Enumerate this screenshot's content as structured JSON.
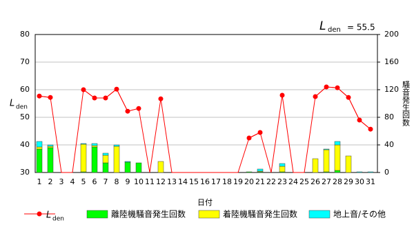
{
  "chart_data": {
    "type": "combo",
    "annotation": {
      "text": "L",
      "sub": "den",
      "value_text": "= 55.5"
    },
    "y_label": "L",
    "y_label_sub": "den",
    "y2_label": "騒音発生回数",
    "x_label": "日付",
    "categories": [
      "1",
      "2",
      "3",
      "4",
      "5",
      "6",
      "7",
      "8",
      "9",
      "10",
      "11",
      "12",
      "13",
      "14",
      "15",
      "16",
      "17",
      "18",
      "19",
      "20",
      "21",
      "22",
      "23",
      "24",
      "25",
      "26",
      "27",
      "28",
      "29",
      "30",
      "31"
    ],
    "ylim": [
      30,
      80
    ],
    "yticks": [
      30,
      40,
      50,
      60,
      70,
      80
    ],
    "y2lim": [
      0,
      200
    ],
    "y2ticks": [
      0,
      40,
      80,
      120,
      160,
      200
    ],
    "grid": true,
    "series": [
      {
        "name": "L",
        "name_sub": "den",
        "type": "line",
        "color": "#ff0000",
        "axis": "y",
        "values": [
          57.7,
          57.2,
          null,
          null,
          60,
          57,
          57,
          60.2,
          52.2,
          53.2,
          null,
          56.7,
          null,
          null,
          null,
          null,
          null,
          null,
          null,
          42.5,
          44.5,
          null,
          58,
          null,
          null,
          57.5,
          61,
          60.7,
          57.2,
          49,
          45.7
        ]
      },
      {
        "name": "離陸機騒音発生回数",
        "type": "bar",
        "color": "#00ff00",
        "axis": "y2",
        "values": [
          34,
          36,
          0,
          0,
          1,
          37,
          14,
          0,
          15,
          14,
          0,
          0,
          0,
          0,
          0,
          0,
          0,
          0,
          0,
          1,
          1,
          0,
          1,
          0,
          0,
          0,
          1,
          3,
          0,
          0,
          0
        ]
      },
      {
        "name": "着陸機騒音発生回数",
        "type": "bar",
        "color": "#ffff00",
        "axis": "y2",
        "values": [
          3,
          2,
          0,
          0,
          40,
          2,
          11,
          38,
          0,
          0,
          0,
          16,
          0,
          0,
          0,
          0,
          0,
          0,
          0,
          0,
          1,
          0,
          8,
          0,
          0,
          20,
          32,
          37,
          24,
          0,
          0
        ]
      },
      {
        "name": "地上音/その他",
        "type": "bar",
        "color": "#00ffff",
        "axis": "y2",
        "values": [
          8,
          2,
          0,
          0,
          1,
          3,
          3,
          2,
          1,
          0,
          0,
          0,
          0,
          0,
          0,
          0,
          0,
          0,
          0,
          0,
          3,
          0,
          4,
          0,
          0,
          0,
          1,
          5,
          0,
          1,
          1
        ]
      }
    ]
  }
}
